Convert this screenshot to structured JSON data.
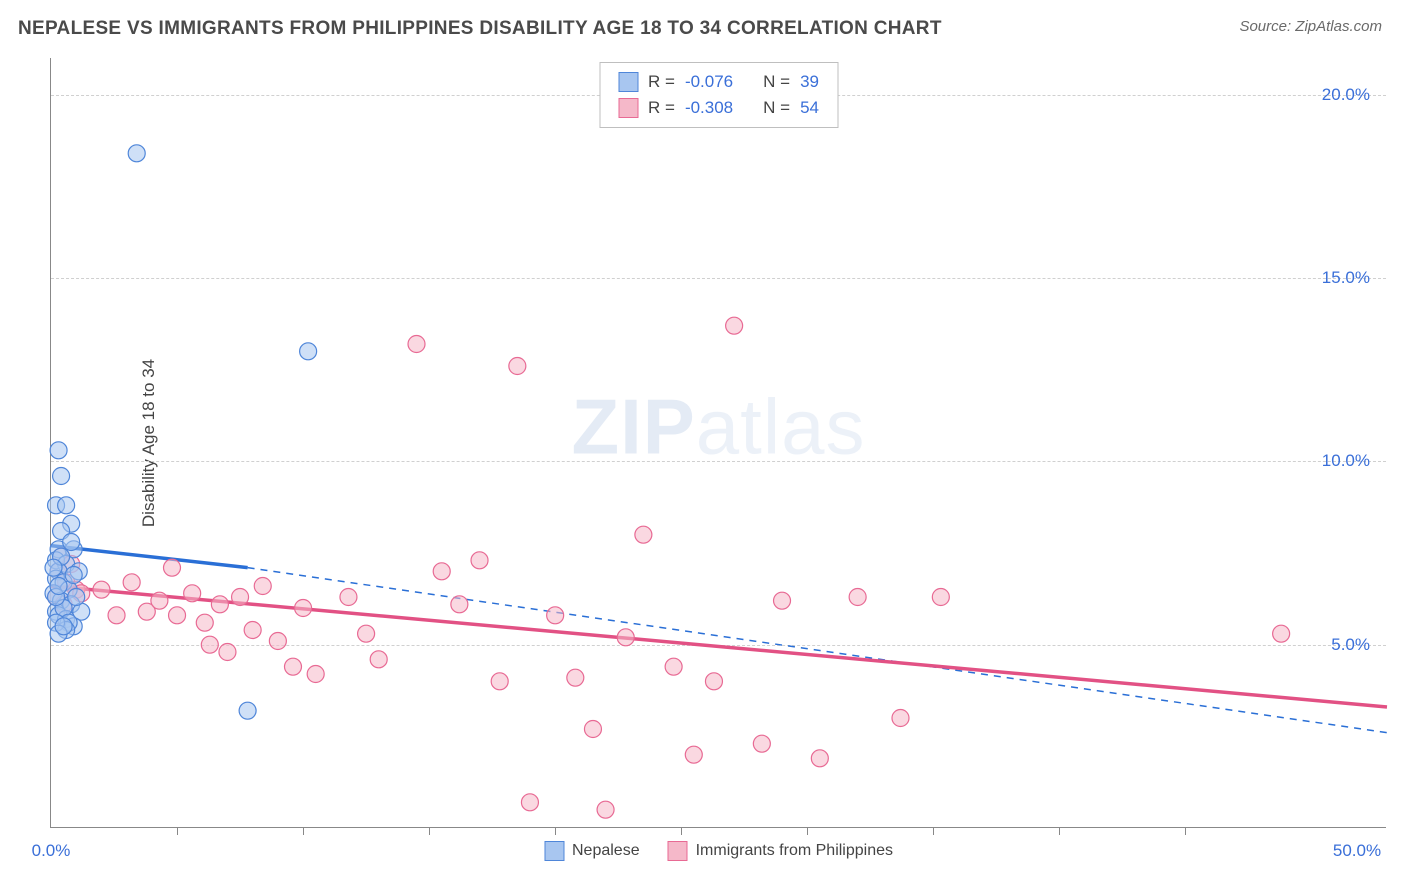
{
  "header": {
    "title": "NEPALESE VS IMMIGRANTS FROM PHILIPPINES DISABILITY AGE 18 TO 34 CORRELATION CHART",
    "source": "Source: ZipAtlas.com"
  },
  "axes": {
    "y_label": "Disability Age 18 to 34",
    "x_min": 0.0,
    "x_max": 53.0,
    "y_min": 0.0,
    "y_max": 21.0,
    "y_ticks": [
      {
        "v": 5.0,
        "label": "5.0%"
      },
      {
        "v": 10.0,
        "label": "10.0%"
      },
      {
        "v": 15.0,
        "label": "15.0%"
      },
      {
        "v": 20.0,
        "label": "20.0%"
      }
    ],
    "x_ticks": [
      5,
      10,
      15,
      20,
      25,
      30,
      35,
      40,
      45
    ],
    "x_tick_labels": [
      {
        "v": 0.0,
        "label": "0.0%"
      },
      {
        "v": 53.0,
        "label": "50.0%"
      }
    ]
  },
  "watermark": {
    "bold": "ZIP",
    "rest": "atlas"
  },
  "colors": {
    "blue_fill": "#a8c6f0",
    "blue_stroke": "#4f86d9",
    "pink_fill": "#f5b8c9",
    "pink_stroke": "#e86a94",
    "blue_line": "#2a6fd6",
    "pink_line": "#e25184",
    "grid": "#d0d0d0",
    "axis": "#888888",
    "text": "#444444",
    "value_text": "#3a6fd8"
  },
  "marker": {
    "radius": 8.5,
    "fill_opacity": 0.55,
    "stroke_width": 1.2
  },
  "legend_top": {
    "rows": [
      {
        "swatch": "blue",
        "r_label": "R =",
        "r": "-0.076",
        "n_label": "N =",
        "n": "39"
      },
      {
        "swatch": "pink",
        "r_label": "R =",
        "r": "-0.308",
        "n_label": "N =",
        "n": "54"
      }
    ]
  },
  "legend_bottom": {
    "items": [
      {
        "swatch": "blue",
        "label": "Nepalese"
      },
      {
        "swatch": "pink",
        "label": "Immigrants from Philippines"
      }
    ]
  },
  "series": {
    "blue": {
      "points": [
        [
          0.3,
          10.3
        ],
        [
          0.4,
          9.6
        ],
        [
          0.2,
          8.8
        ],
        [
          0.6,
          8.8
        ],
        [
          0.8,
          8.3
        ],
        [
          0.4,
          8.1
        ],
        [
          0.3,
          7.6
        ],
        [
          0.9,
          7.6
        ],
        [
          0.2,
          7.3
        ],
        [
          0.6,
          7.2
        ],
        [
          0.3,
          7.0
        ],
        [
          1.1,
          7.0
        ],
        [
          0.2,
          6.8
        ],
        [
          0.5,
          6.7
        ],
        [
          0.7,
          6.5
        ],
        [
          0.1,
          6.4
        ],
        [
          0.4,
          6.2
        ],
        [
          0.8,
          6.1
        ],
        [
          0.2,
          5.9
        ],
        [
          1.2,
          5.9
        ],
        [
          0.3,
          5.8
        ],
        [
          0.6,
          5.7
        ],
        [
          0.9,
          5.5
        ],
        [
          3.4,
          18.4
        ],
        [
          10.2,
          13.0
        ],
        [
          7.8,
          3.2
        ],
        [
          0.5,
          6.0
        ],
        [
          0.2,
          6.3
        ],
        [
          0.7,
          5.6
        ],
        [
          0.3,
          6.6
        ],
        [
          0.9,
          6.9
        ],
        [
          0.4,
          7.4
        ],
        [
          0.1,
          7.1
        ],
        [
          0.6,
          5.4
        ],
        [
          0.2,
          5.6
        ],
        [
          0.8,
          7.8
        ],
        [
          0.3,
          5.3
        ],
        [
          0.5,
          5.5
        ],
        [
          1.0,
          6.3
        ]
      ],
      "trend": {
        "x1": 0.0,
        "y1": 7.7,
        "x2": 7.8,
        "y2": 7.1,
        "dash_x2": 53.0,
        "dash_y2": 2.6
      }
    },
    "pink": {
      "points": [
        [
          0.4,
          7.4
        ],
        [
          0.8,
          7.2
        ],
        [
          0.3,
          7.0
        ],
        [
          0.6,
          6.7
        ],
        [
          1.0,
          6.5
        ],
        [
          0.2,
          6.3
        ],
        [
          0.5,
          6.1
        ],
        [
          1.2,
          6.4
        ],
        [
          2.0,
          6.5
        ],
        [
          2.6,
          5.8
        ],
        [
          3.2,
          6.7
        ],
        [
          3.8,
          5.9
        ],
        [
          4.3,
          6.2
        ],
        [
          5.0,
          5.8
        ],
        [
          5.6,
          6.4
        ],
        [
          6.1,
          5.6
        ],
        [
          6.7,
          6.1
        ],
        [
          7.0,
          4.8
        ],
        [
          7.5,
          6.3
        ],
        [
          8.0,
          5.4
        ],
        [
          8.4,
          6.6
        ],
        [
          9.0,
          5.1
        ],
        [
          9.6,
          4.4
        ],
        [
          10.0,
          6.0
        ],
        [
          10.5,
          4.2
        ],
        [
          11.8,
          6.3
        ],
        [
          13.0,
          4.6
        ],
        [
          14.5,
          13.2
        ],
        [
          15.5,
          7.0
        ],
        [
          16.2,
          6.1
        ],
        [
          17.0,
          7.3
        ],
        [
          17.8,
          4.0
        ],
        [
          18.5,
          12.6
        ],
        [
          19.0,
          0.7
        ],
        [
          20.0,
          5.8
        ],
        [
          20.8,
          4.1
        ],
        [
          21.5,
          2.7
        ],
        [
          22.0,
          0.5
        ],
        [
          22.8,
          5.2
        ],
        [
          23.5,
          8.0
        ],
        [
          24.7,
          4.4
        ],
        [
          25.5,
          2.0
        ],
        [
          26.3,
          4.0
        ],
        [
          27.1,
          13.7
        ],
        [
          28.2,
          2.3
        ],
        [
          29.0,
          6.2
        ],
        [
          30.5,
          1.9
        ],
        [
          32.0,
          6.3
        ],
        [
          33.7,
          3.0
        ],
        [
          35.3,
          6.3
        ],
        [
          48.8,
          5.3
        ],
        [
          4.8,
          7.1
        ],
        [
          12.5,
          5.3
        ],
        [
          6.3,
          5.0
        ]
      ],
      "trend": {
        "x1": 0.0,
        "y1": 6.6,
        "x2": 53.0,
        "y2": 3.3
      }
    }
  }
}
